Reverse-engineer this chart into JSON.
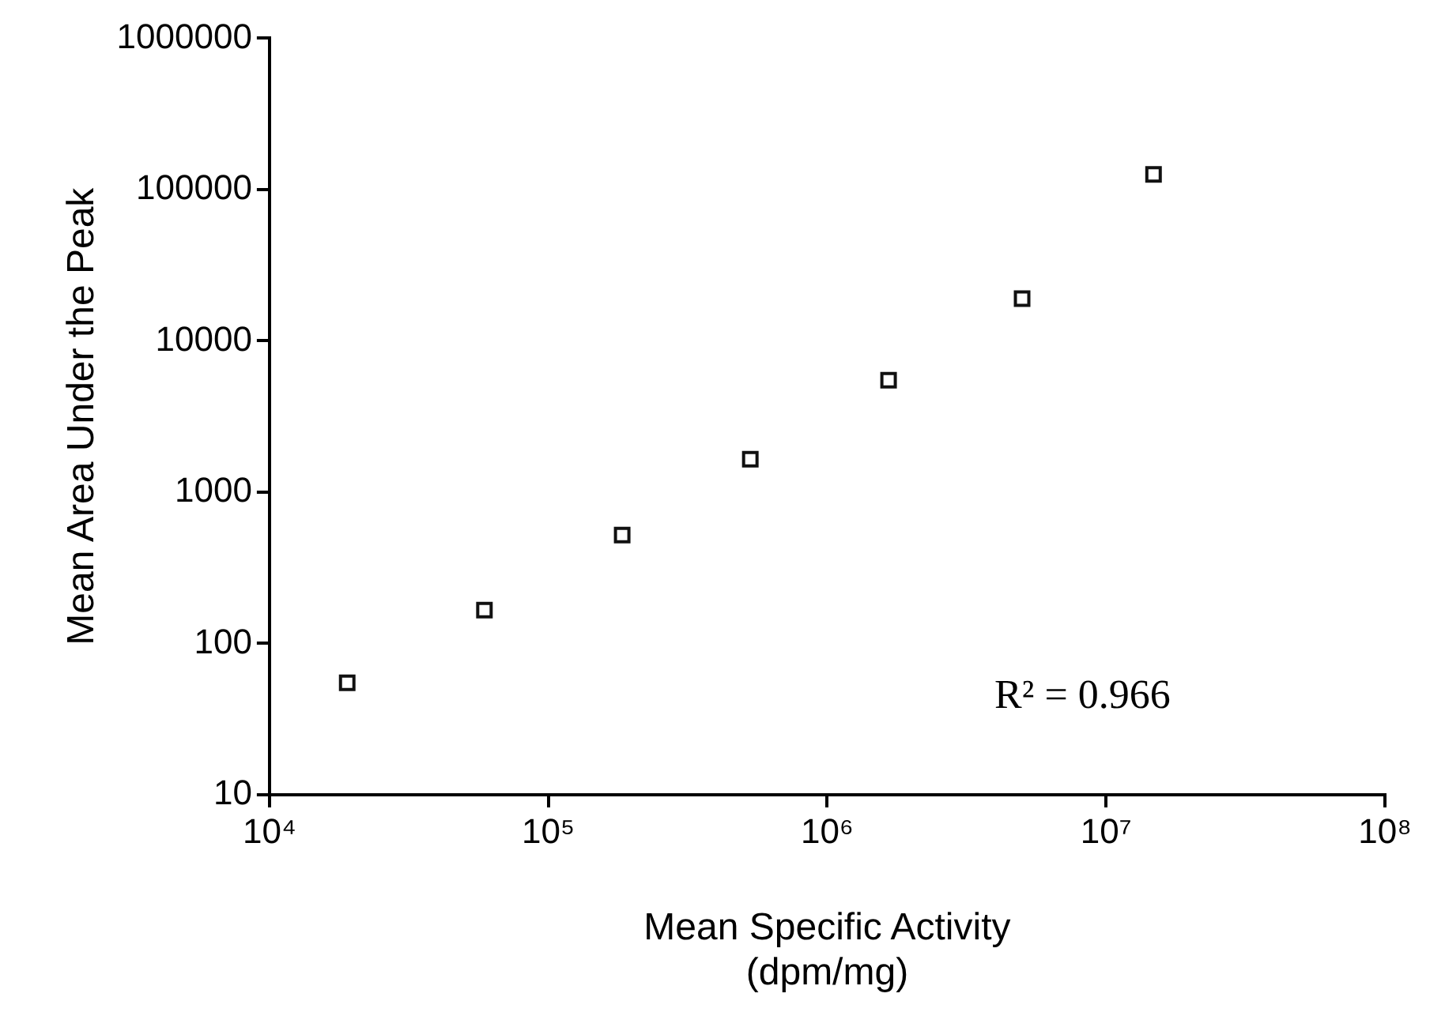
{
  "chart_data": {
    "type": "scatter",
    "xlabel": "Mean Specific Activity\n(dpm/mg)",
    "ylabel": "Mean Area Under the Peak",
    "x": [
      19000,
      59000,
      184000,
      530000,
      1660000,
      5000000,
      14800000
    ],
    "series": [
      {
        "color": "#111111",
        "values": [
          55,
          166,
          520,
          1650,
          5500,
          19000,
          126000
        ]
      }
    ],
    "log": "xy",
    "marker": "square",
    "grid": false,
    "xlim": [
      10000,
      100000000
    ],
    "xticks": [
      {
        "value": 10000,
        "label": "10⁴"
      },
      {
        "value": 100000,
        "label": "10⁵"
      },
      {
        "value": 1000000,
        "label": "10⁶"
      },
      {
        "value": 10000000,
        "label": "10⁷"
      },
      {
        "value": 100000000,
        "label": "10⁸"
      }
    ],
    "ylim": [
      10,
      1000000
    ],
    "yticks": [
      10,
      100,
      1000,
      10000,
      100000,
      1000000
    ],
    "annotations": [
      "R² = 0.966"
    ]
  }
}
